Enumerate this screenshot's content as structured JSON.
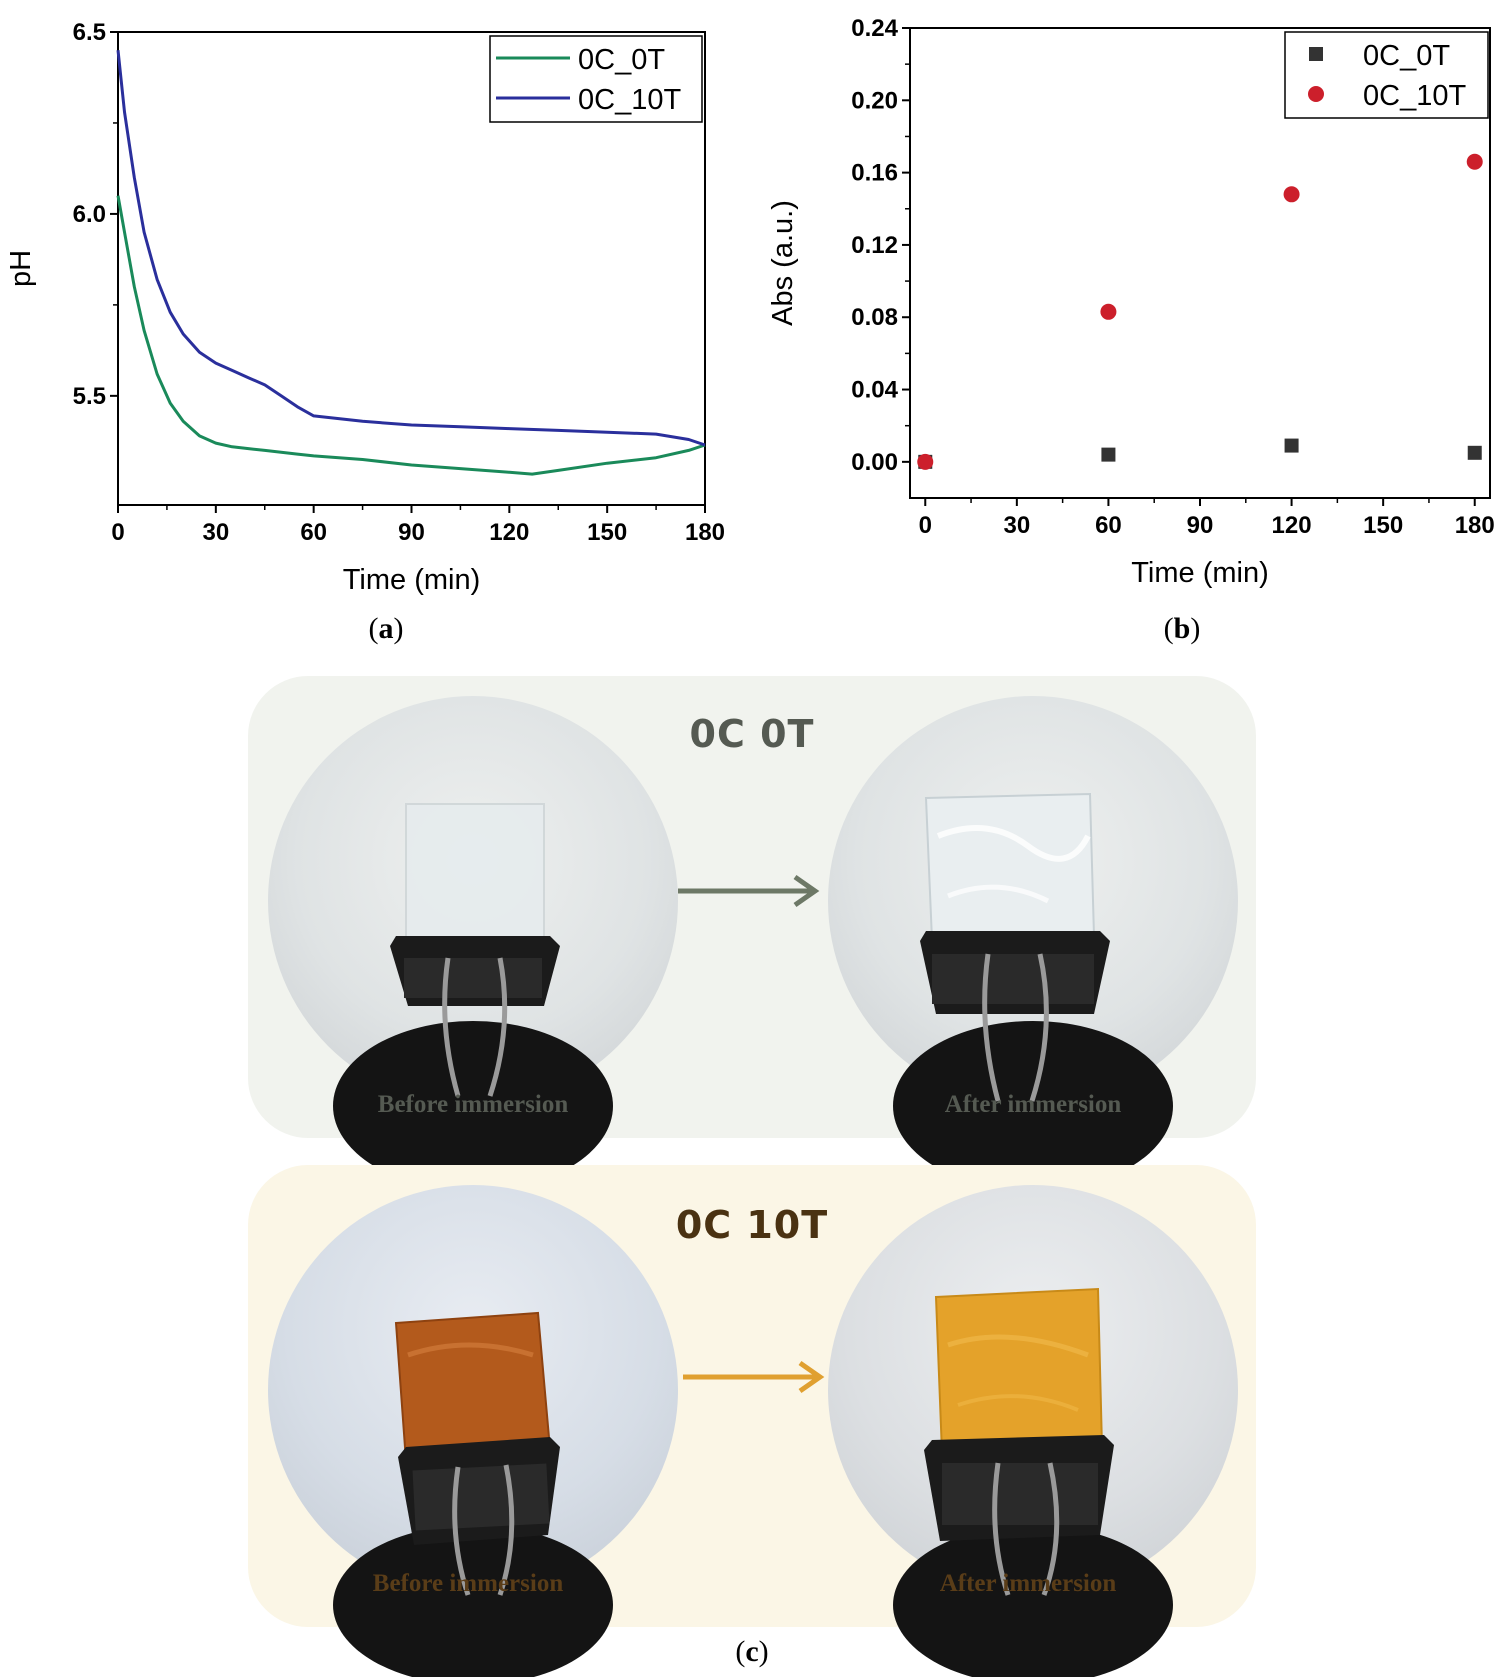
{
  "chart_data": [
    {
      "id": "a",
      "type": "line",
      "panel_label": "a",
      "xlabel": "Time (min)",
      "ylabel": "pH",
      "xlim": [
        0,
        180
      ],
      "ylim": [
        5.2,
        6.5
      ],
      "xticks": [
        0,
        30,
        60,
        90,
        120,
        150,
        180
      ],
      "yticks": [
        5.5,
        6.0,
        6.5
      ],
      "ytick_labels": [
        "5.5",
        "6.0",
        "6.5"
      ],
      "legend": "top-right",
      "series": [
        {
          "name": "0C_0T",
          "color": "#1a8a5a",
          "x": [
            0,
            2,
            5,
            8,
            12,
            16,
            20,
            25,
            30,
            35,
            40,
            45,
            50,
            55,
            60,
            75,
            90,
            105,
            120,
            127,
            135,
            150,
            165,
            175,
            180
          ],
          "y": [
            6.05,
            5.95,
            5.8,
            5.68,
            5.56,
            5.48,
            5.43,
            5.39,
            5.37,
            5.36,
            5.355,
            5.35,
            5.345,
            5.34,
            5.335,
            5.325,
            5.31,
            5.3,
            5.29,
            5.285,
            5.295,
            5.315,
            5.33,
            5.35,
            5.365
          ]
        },
        {
          "name": "0C_10T",
          "color": "#2a2f9c",
          "x": [
            0,
            2,
            5,
            8,
            12,
            16,
            20,
            25,
            30,
            35,
            40,
            45,
            50,
            55,
            60,
            75,
            90,
            105,
            120,
            135,
            150,
            165,
            175,
            180
          ],
          "y": [
            6.45,
            6.28,
            6.1,
            5.95,
            5.82,
            5.73,
            5.67,
            5.62,
            5.59,
            5.57,
            5.55,
            5.53,
            5.5,
            5.47,
            5.445,
            5.43,
            5.42,
            5.415,
            5.41,
            5.405,
            5.4,
            5.395,
            5.38,
            5.365
          ]
        }
      ]
    },
    {
      "id": "b",
      "type": "scatter",
      "panel_label": "b",
      "xlabel": "Time (min)",
      "ylabel": "Abs (a.u.)",
      "xlim": [
        -5,
        185
      ],
      "ylim": [
        -0.02,
        0.24
      ],
      "xticks": [
        0,
        30,
        60,
        90,
        120,
        150,
        180
      ],
      "yticks": [
        0.0,
        0.04,
        0.08,
        0.12,
        0.16,
        0.2,
        0.24
      ],
      "ytick_labels": [
        "0.00",
        "0.04",
        "0.08",
        "0.12",
        "0.16",
        "0.20",
        "0.24"
      ],
      "legend": "top-right",
      "series": [
        {
          "name": "0C_0T",
          "marker": "square",
          "color": "#333333",
          "x": [
            0,
            60,
            120,
            180
          ],
          "y": [
            0.0,
            0.004,
            0.009,
            0.005
          ]
        },
        {
          "name": "0C_10T",
          "marker": "circle",
          "color": "#cc1f2b",
          "x": [
            0,
            60,
            120,
            180
          ],
          "y": [
            0.0,
            0.083,
            0.148,
            0.166
          ]
        }
      ]
    }
  ],
  "panel_c": {
    "label": "c",
    "rows": [
      {
        "title": "0C 0T",
        "before": "Before immersion",
        "after": "After immersion",
        "title_color": "#555a52",
        "caption_color": "#555a52",
        "arrow_color": "#6d7866",
        "bg_color": "#f1f3ee"
      },
      {
        "title": "0C 10T",
        "before": "Before immersion",
        "after": "After immersion",
        "title_color": "#4a3212",
        "caption_color": "#5a3d18",
        "arrow_color": "#e0a030",
        "bg_color": "#fbf6e6"
      }
    ]
  }
}
